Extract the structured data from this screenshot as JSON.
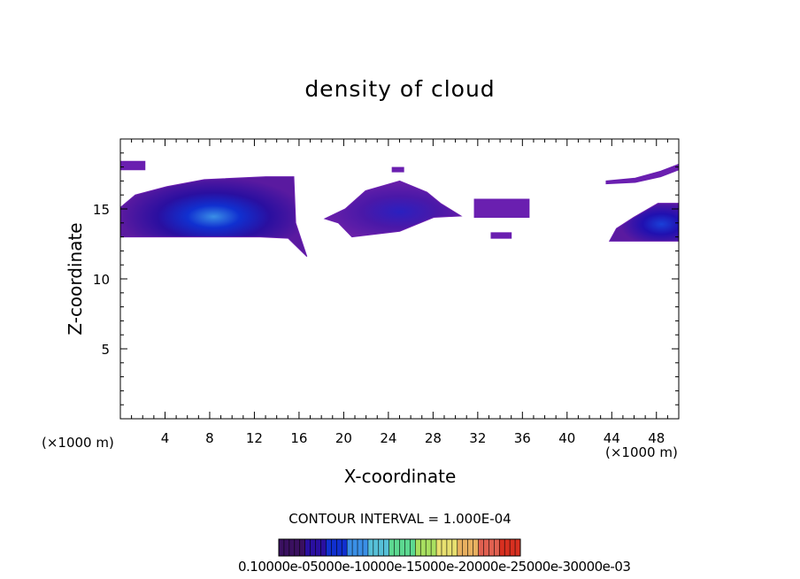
{
  "chart_data": {
    "type": "heatmap",
    "title": "density of cloud",
    "xlabel": "X-coordinate",
    "ylabel": "Z-coordinate",
    "x_unit_left": "(×1000 m)",
    "x_unit_right": "(×1000 m)",
    "xlim": [
      0,
      50
    ],
    "ylim": [
      0,
      20
    ],
    "xticks": [
      "4",
      "8",
      "12",
      "16",
      "20",
      "24",
      "28",
      "32",
      "36",
      "40",
      "44",
      "48"
    ],
    "yticks": [
      "5",
      "10",
      "15"
    ],
    "contour_interval_label": "CONTOUR INTERVAL = 1.000E-04",
    "colorbar_labels_text": "0.10000e-05000e-10000e-15000e-20000e-25000e-30000e-03",
    "colorbar_colors": [
      "#3a1060",
      "#2a0fa0",
      "#1030d0",
      "#3a8fe6",
      "#56c0d8",
      "#5cd890",
      "#a8e060",
      "#e8e070",
      "#e8b060",
      "#e06050",
      "#d83020"
    ],
    "cloud_regions": [
      {
        "name": "left-cloud",
        "x": [
          0,
          16.7
        ],
        "z": [
          11.6,
          17.3
        ],
        "peak_z": 14.6,
        "max_density": 0.0005
      },
      {
        "name": "middle-cloud",
        "x": [
          18.3,
          30.5
        ],
        "z": [
          13.0,
          17.0
        ],
        "peak_z": 15.0,
        "max_density": 0.0003
      },
      {
        "name": "small-cloud-a",
        "x": [
          31.7,
          36.6
        ],
        "z": [
          14.4,
          15.7
        ],
        "peak_z": 15.0,
        "max_density": 0.0001
      },
      {
        "name": "small-cloud-b",
        "x": [
          33.2,
          35.0
        ],
        "z": [
          12.9,
          13.3
        ],
        "peak_z": 13.1,
        "max_density": 0.0001
      },
      {
        "name": "top-left-strip",
        "x": [
          0,
          2.2
        ],
        "z": [
          17.8,
          18.4
        ],
        "peak_z": 18.1,
        "max_density": 0.0001
      },
      {
        "name": "right-strip",
        "x": [
          43.5,
          50
        ],
        "z": [
          16.8,
          18.2
        ],
        "peak_z": 17.5,
        "max_density": 0.0001
      },
      {
        "name": "right-cloud",
        "x": [
          43.8,
          50
        ],
        "z": [
          12.7,
          15.4
        ],
        "peak_z": 14.2,
        "max_density": 0.00045
      }
    ],
    "grid": false
  }
}
